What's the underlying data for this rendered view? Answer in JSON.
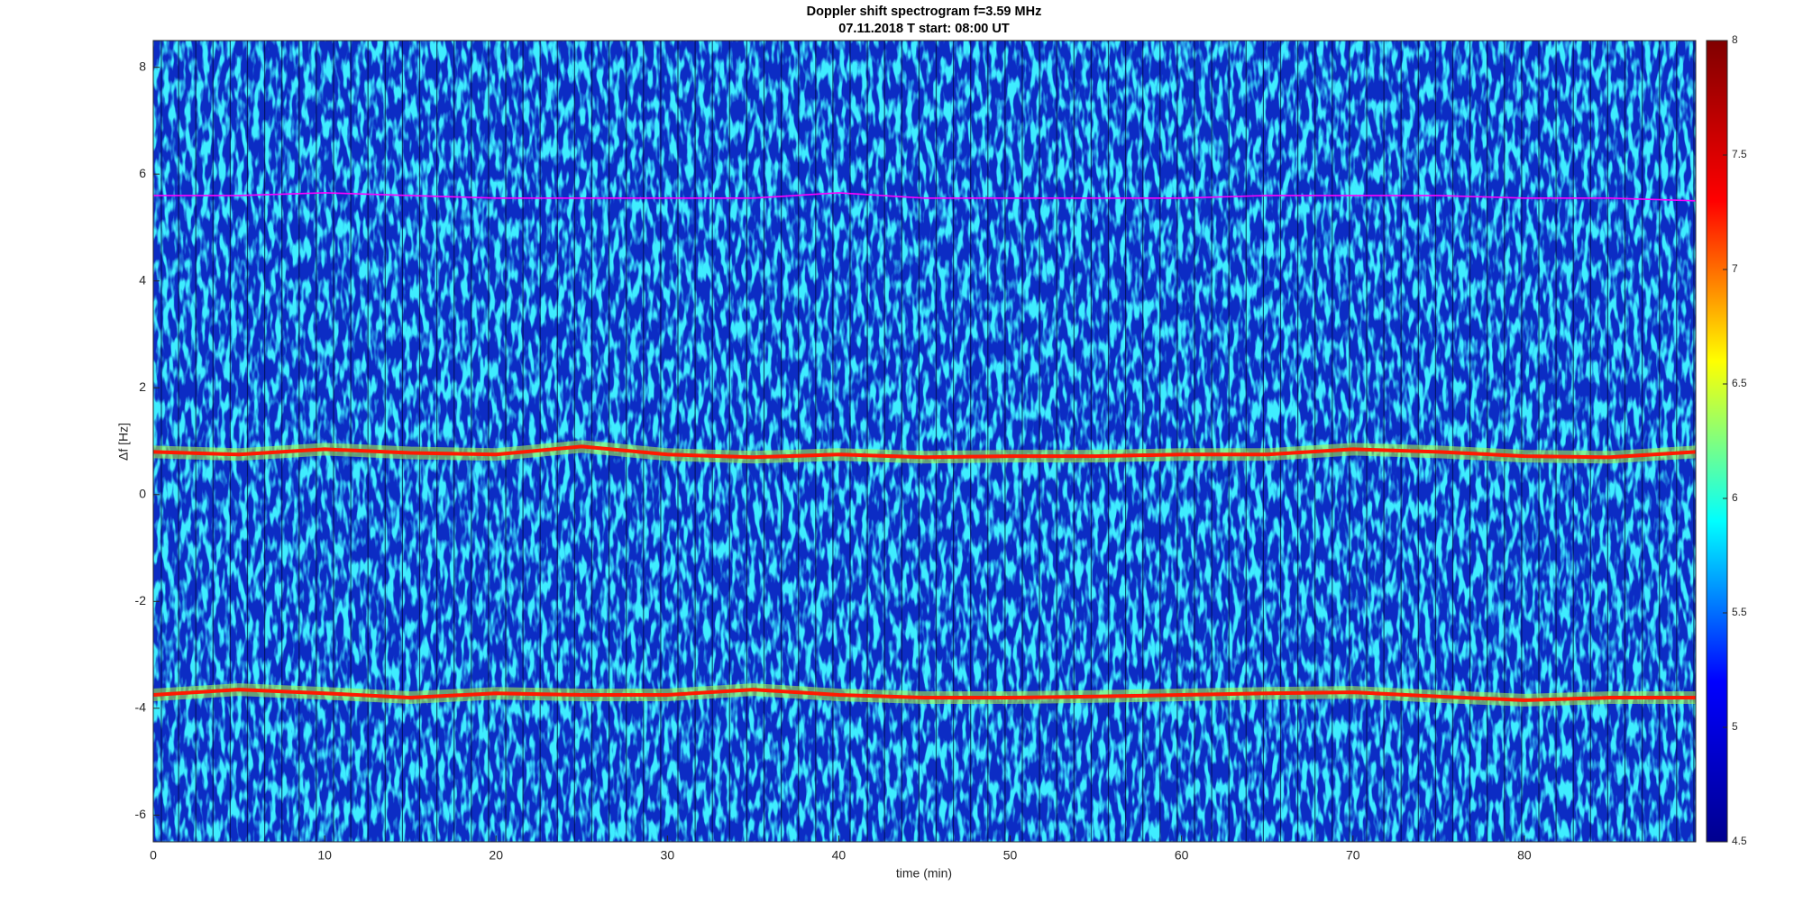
{
  "chart_data": {
    "type": "spectrogram",
    "title": "Doppler shift spectrogram f=3.59 MHz",
    "subtitle": "07.11.2018   T start: 08:00 UT",
    "x_label": "time (min)",
    "y_label": "Δf [Hz]",
    "xlim": [
      0,
      90
    ],
    "xticks": [
      0,
      10,
      20,
      30,
      40,
      50,
      60,
      70,
      80
    ],
    "ylim": [
      -6.5,
      8.5
    ],
    "yticks": [
      -6,
      -4,
      -2,
      0,
      2,
      4,
      6,
      8
    ],
    "grid": false,
    "x": [
      0,
      5,
      10,
      15,
      20,
      25,
      30,
      35,
      40,
      45,
      50,
      55,
      60,
      65,
      70,
      75,
      80,
      85,
      90
    ],
    "series": [
      {
        "color": "#ff1a00",
        "values": [
          0.8,
          0.75,
          0.85,
          0.78,
          0.75,
          0.9,
          0.75,
          0.7,
          0.75,
          0.7,
          0.72,
          0.72,
          0.75,
          0.75,
          0.85,
          0.8,
          0.72,
          0.7,
          0.8
        ]
      },
      {
        "color": "#ff1a00",
        "values": [
          -3.75,
          -3.65,
          -3.72,
          -3.8,
          -3.72,
          -3.75,
          -3.75,
          -3.65,
          -3.75,
          -3.8,
          -3.8,
          -3.78,
          -3.75,
          -3.72,
          -3.7,
          -3.78,
          -3.85,
          -3.8,
          -3.8
        ]
      },
      {
        "color": "#ff00ff",
        "values": [
          5.6,
          5.6,
          5.65,
          5.6,
          5.55,
          5.55,
          5.55,
          5.55,
          5.65,
          5.55,
          5.55,
          5.55,
          5.55,
          5.6,
          5.6,
          5.6,
          5.55,
          5.55,
          5.5
        ]
      }
    ],
    "colorbar": {
      "lim": [
        4.5,
        8
      ],
      "ticks": [
        4.5,
        5,
        5.5,
        6,
        6.5,
        7,
        7.5,
        8
      ],
      "colors": [
        "#00008f",
        "#0000ff",
        "#00ffff",
        "#ffff00",
        "#ff0000",
        "#800000"
      ]
    }
  }
}
